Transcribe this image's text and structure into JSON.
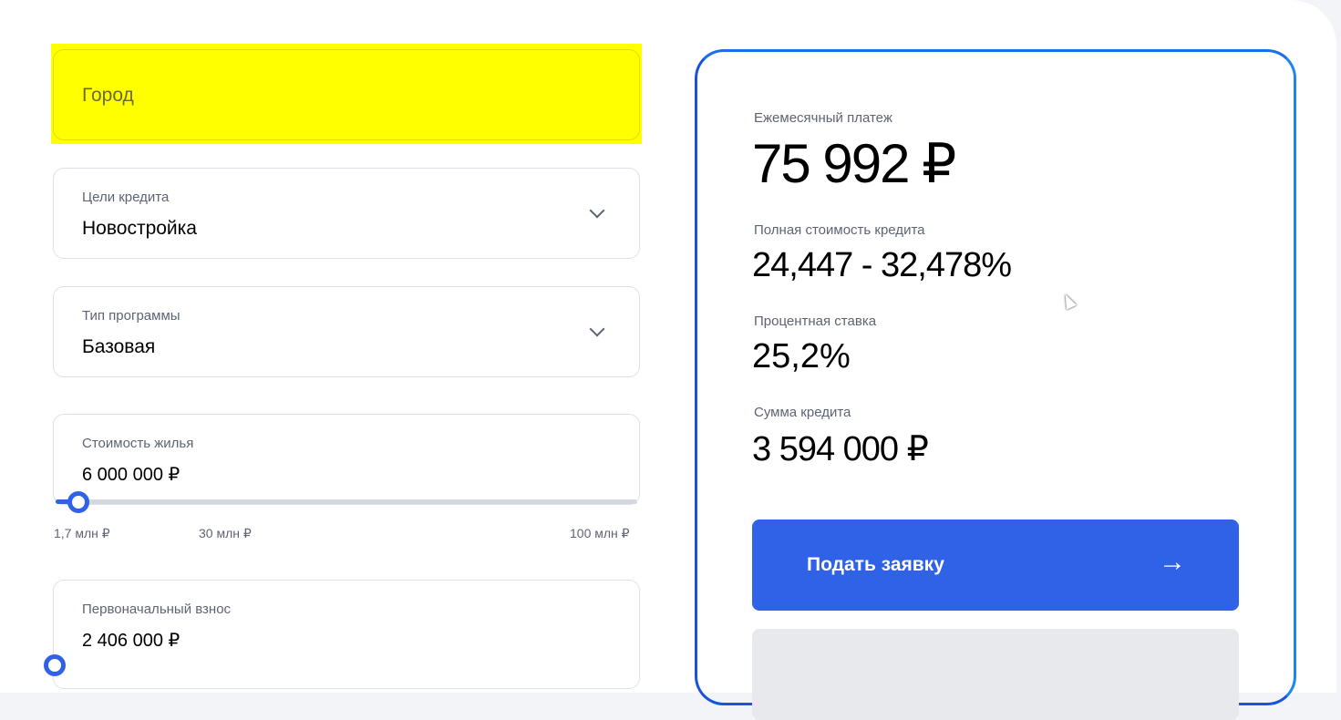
{
  "form": {
    "city": {
      "placeholder": "Город"
    },
    "purpose": {
      "label": "Цели кредита",
      "value": "Новостройка"
    },
    "program": {
      "label": "Тип программы",
      "value": "Базовая"
    },
    "price": {
      "label": "Стоимость жилья",
      "value": "6 000 000 ₽",
      "slider_percent": 4,
      "ticks": [
        "1,7 млн ₽",
        "30 млн ₽",
        "100 млн ₽"
      ]
    },
    "down_payment": {
      "label": "Первоначальный взнос",
      "value": "2 406 000 ₽"
    }
  },
  "summary": {
    "monthly_label": "Ежемесячный платеж",
    "monthly_value": "75 992 ₽",
    "full_cost_label": "Полная стоимость кредита",
    "full_cost_value": "24,447 - 32,478%",
    "rate_label": "Процентная ставка",
    "rate_value": "25,2%",
    "amount_label": "Сумма кредита",
    "amount_value": "3 594 000 ₽",
    "apply_label": "Подать заявку",
    "apply_icon": "arrow-right-icon"
  },
  "colors": {
    "accent": "#3062e8",
    "highlight": "#ffff00"
  }
}
